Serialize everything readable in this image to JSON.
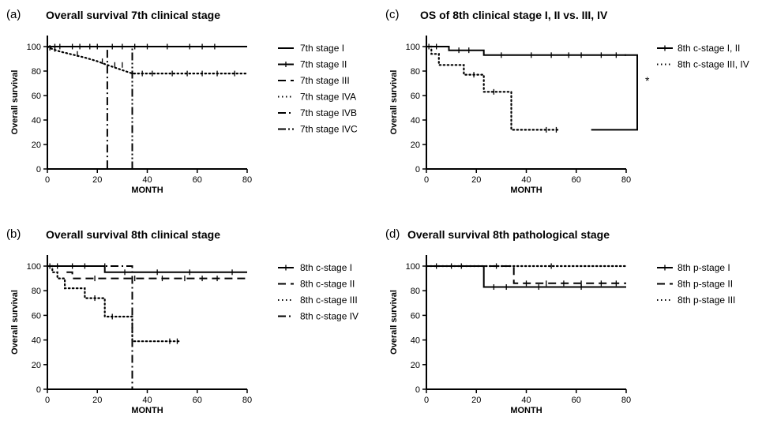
{
  "chart_data": [
    {
      "panel": "(a)",
      "type": "line",
      "title": "Overall survival  7th clinical stage",
      "xlabel": "MONTH",
      "ylabel": "Overall survival",
      "xlim": [
        0,
        80
      ],
      "ylim": [
        0,
        100
      ],
      "xticks": [
        0,
        20,
        40,
        60,
        80
      ],
      "yticks": [
        0,
        20,
        40,
        60,
        80,
        100
      ],
      "legend": "right",
      "series": [
        {
          "name": "7th stage I",
          "style": "solid",
          "x": [
            0,
            80
          ],
          "y": [
            100,
            100
          ],
          "censor_x": [
            3,
            10,
            13,
            20,
            26,
            30,
            40,
            48,
            57,
            67
          ],
          "censor_y": [
            100,
            100,
            100,
            100,
            100,
            100,
            100,
            100,
            100,
            100
          ]
        },
        {
          "name": "7th stage II",
          "style": "solid",
          "x": [
            0,
            80
          ],
          "y": [
            100,
            100
          ],
          "censor_x": [
            5,
            17
          ],
          "censor_y": [
            100,
            100
          ]
        },
        {
          "name": "7th stage III",
          "style": "dash",
          "x": [
            0,
            80
          ],
          "y": [
            100,
            100
          ],
          "censor_x": [
            35,
            62
          ],
          "censor_y": [
            100,
            100
          ]
        },
        {
          "name": "7th stage IVA",
          "style": "dot",
          "x": [
            0,
            2,
            5,
            9,
            15,
            20,
            24,
            34,
            80
          ],
          "y": [
            100,
            98,
            96,
            94,
            91,
            88,
            85,
            78,
            78
          ],
          "censor_x": [
            1,
            3,
            12,
            22,
            27,
            30,
            38,
            42,
            50,
            56,
            62,
            68,
            75
          ],
          "censor_y": [
            99,
            98,
            94,
            88,
            85,
            85,
            78,
            78,
            78,
            78,
            78,
            78,
            78
          ]
        },
        {
          "name": "7th stage IVB",
          "style": "dashdot",
          "x": [
            0,
            24,
            24
          ],
          "y": [
            100,
            100,
            0
          ],
          "censor_x": [],
          "censor_y": []
        },
        {
          "name": "7th stage IVC",
          "style": "dashdotdot",
          "x": [
            0,
            34,
            34
          ],
          "y": [
            100,
            100,
            0
          ],
          "censor_x": [],
          "censor_y": []
        }
      ]
    },
    {
      "panel": "(b)",
      "type": "line",
      "title": "Overall survival  8th clinical stage",
      "xlabel": "MONTH",
      "ylabel": "Overall survival",
      "xlim": [
        0,
        80
      ],
      "ylim": [
        0,
        100
      ],
      "xticks": [
        0,
        20,
        40,
        60,
        80
      ],
      "yticks": [
        0,
        20,
        40,
        60,
        80,
        100
      ],
      "legend": "right",
      "series": [
        {
          "name": "8th c-stage I",
          "style": "solid",
          "x": [
            0,
            23,
            23,
            80
          ],
          "y": [
            100,
            100,
            95,
            95
          ],
          "censor_x": [
            4,
            10,
            15,
            31,
            44,
            57,
            74
          ],
          "censor_y": [
            100,
            100,
            100,
            95,
            95,
            95,
            95
          ]
        },
        {
          "name": "8th c-stage II",
          "style": "dash",
          "x": [
            0,
            8,
            8,
            10,
            10,
            80
          ],
          "y": [
            100,
            100,
            95,
            95,
            90,
            90
          ],
          "censor_x": [
            19,
            35,
            46,
            55,
            62,
            68
          ],
          "censor_y": [
            90,
            90,
            90,
            90,
            90,
            90
          ]
        },
        {
          "name": "8th c-stage III",
          "style": "dot",
          "x": [
            0,
            2,
            2,
            4,
            4,
            7,
            7,
            15,
            15,
            23,
            23,
            34,
            34,
            53
          ],
          "y": [
            100,
            100,
            95,
            95,
            90,
            90,
            82,
            82,
            74,
            74,
            59,
            59,
            39,
            39
          ],
          "censor_x": [
            1,
            19,
            26,
            49,
            52
          ],
          "censor_y": [
            100,
            74,
            59,
            39,
            39
          ]
        },
        {
          "name": "8th c-stage IV",
          "style": "dashdot",
          "x": [
            0,
            34,
            34
          ],
          "y": [
            100,
            100,
            0
          ],
          "censor_x": [
            23
          ],
          "censor_y": [
            100
          ]
        }
      ]
    },
    {
      "panel": "(c)",
      "type": "line",
      "title": "OS of 8th clinical stage I, II vs. III, IV",
      "xlabel": "MONTH",
      "ylabel": "Overall survival",
      "xlim": [
        0,
        80
      ],
      "ylim": [
        0,
        100
      ],
      "xticks": [
        0,
        20,
        40,
        60,
        80
      ],
      "yticks": [
        0,
        20,
        40,
        60,
        80,
        100
      ],
      "legend": "right",
      "annotation": "*",
      "series": [
        {
          "name": "8th c-stage I, II",
          "style": "solid",
          "x": [
            0,
            9,
            9,
            23,
            23,
            80
          ],
          "y": [
            100,
            100,
            97,
            97,
            93,
            93
          ],
          "censor_x": [
            4,
            13,
            17,
            30,
            42,
            50,
            57,
            62,
            70,
            76
          ],
          "censor_y": [
            100,
            97,
            97,
            93,
            93,
            93,
            93,
            93,
            93,
            93
          ]
        },
        {
          "name": "8th c-stage III, IV",
          "style": "dot",
          "x": [
            0,
            2,
            2,
            5,
            5,
            15,
            15,
            23,
            23,
            34,
            34,
            53
          ],
          "y": [
            100,
            100,
            94,
            94,
            85,
            85,
            77,
            77,
            63,
            63,
            32,
            32
          ],
          "censor_x": [
            1,
            19,
            27,
            48,
            52
          ],
          "censor_y": [
            100,
            77,
            63,
            32,
            32
          ]
        }
      ]
    },
    {
      "panel": "(d)",
      "type": "line",
      "title": "Overall survival  8th pathological stage",
      "xlabel": "MONTH",
      "ylabel": "Overall survival",
      "xlim": [
        0,
        80
      ],
      "ylim": [
        0,
        100
      ],
      "xticks": [
        0,
        20,
        40,
        60,
        80
      ],
      "yticks": [
        0,
        20,
        40,
        60,
        80,
        100
      ],
      "legend": "right",
      "series": [
        {
          "name": "8th p-stage I",
          "style": "solid",
          "x": [
            0,
            23,
            23,
            80
          ],
          "y": [
            100,
            100,
            83,
            83
          ],
          "censor_x": [
            4,
            10,
            14,
            27,
            32,
            45,
            62
          ],
          "censor_y": [
            100,
            100,
            100,
            83,
            83,
            83,
            83
          ]
        },
        {
          "name": "8th p-stage II",
          "style": "dash",
          "x": [
            0,
            35,
            35,
            80
          ],
          "y": [
            100,
            100,
            86,
            86
          ],
          "censor_x": [
            28,
            40,
            48,
            55,
            62,
            70,
            76
          ],
          "censor_y": [
            100,
            86,
            86,
            86,
            86,
            86,
            86
          ]
        },
        {
          "name": "8th p-stage III",
          "style": "dot",
          "x": [
            0,
            80
          ],
          "y": [
            100,
            100
          ],
          "censor_x": [
            50
          ],
          "censor_y": [
            100
          ]
        }
      ]
    }
  ]
}
